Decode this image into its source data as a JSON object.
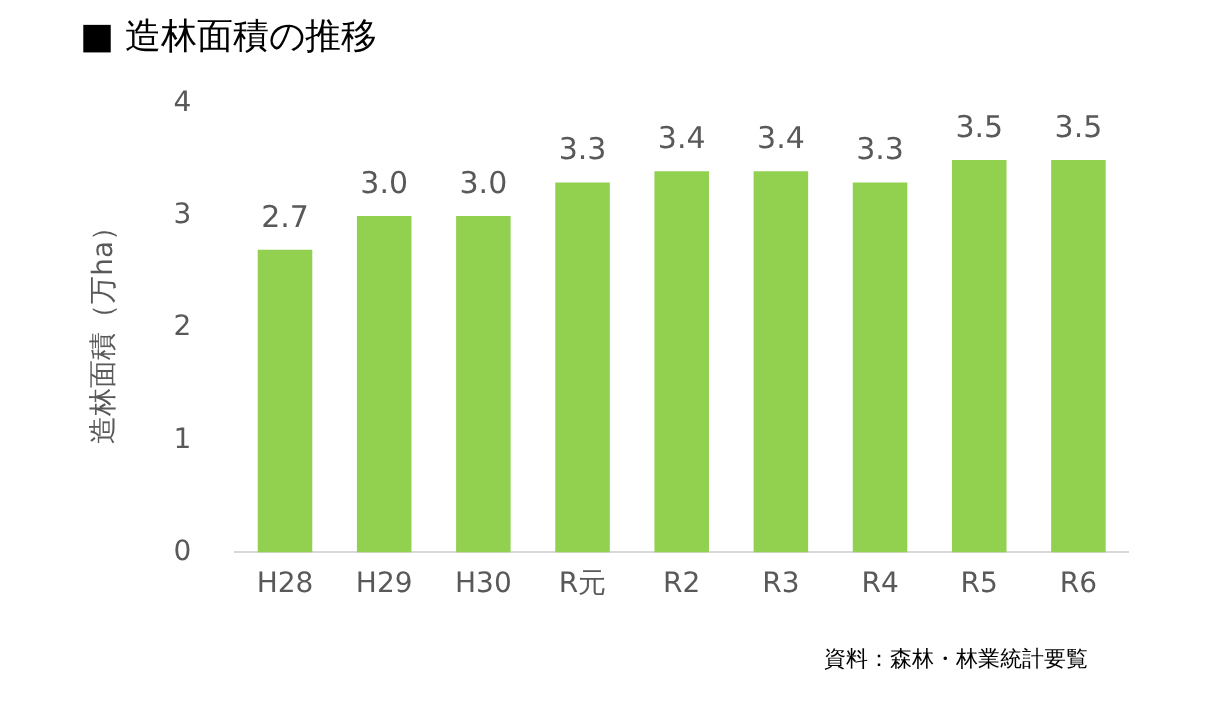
{
  "chart_data": {
    "type": "bar",
    "title": "■ 造林面積の推移",
    "ylabel": "造林面積（万ha）",
    "categories": [
      "H28",
      "H29",
      "H30",
      "R元",
      "R2",
      "R3",
      "R4",
      "R5",
      "R6"
    ],
    "values": [
      2.7,
      3.0,
      3.0,
      3.3,
      3.4,
      3.4,
      3.3,
      3.5,
      3.5
    ],
    "value_labels": [
      "2.7",
      "3.0",
      "3.0",
      "3.3",
      "3.4",
      "3.4",
      "3.3",
      "3.5",
      "3.5"
    ],
    "color": "#92d050",
    "ylim": [
      0,
      4
    ],
    "yticks": [
      0,
      1,
      2,
      3,
      4
    ],
    "grid": false,
    "legend": false,
    "annotations": [
      "資料：森林・林業統計要覧"
    ]
  }
}
